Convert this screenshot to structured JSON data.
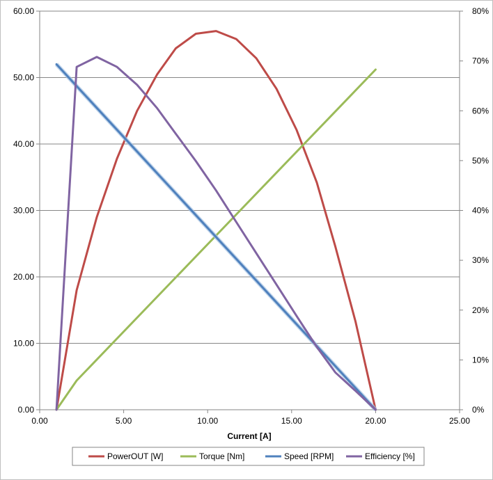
{
  "chart_data": {
    "type": "line",
    "xlabel": "Current [A]",
    "ylabel": "",
    "y2label": "",
    "xlim": [
      0,
      25
    ],
    "ylim": [
      0,
      60
    ],
    "y2lim": [
      0,
      80
    ],
    "x_ticks": [
      "0.00",
      "5.00",
      "10.00",
      "15.00",
      "20.00",
      "25.00"
    ],
    "y_ticks": [
      "0.00",
      "10.00",
      "20.00",
      "30.00",
      "40.00",
      "50.00",
      "60.00"
    ],
    "y2_ticks": [
      "0%",
      "10%",
      "20%",
      "30%",
      "40%",
      "50%",
      "60%",
      "70%",
      "80%"
    ],
    "grid": "horizontal",
    "legend_position": "bottom",
    "series": [
      {
        "name": "PowerOUT [W]",
        "color": "#be4b48",
        "axis": "left",
        "x": [
          1.0,
          2.2,
          3.4,
          4.6,
          5.8,
          7.0,
          8.1,
          9.3,
          10.5,
          11.7,
          12.9,
          14.1,
          15.3,
          16.5,
          17.6,
          18.8,
          20.0
        ],
        "y": [
          0,
          18.0,
          29.0,
          37.8,
          45.0,
          50.5,
          54.4,
          56.6,
          57.0,
          55.8,
          52.9,
          48.3,
          42.1,
          34.2,
          24.6,
          13.3,
          0
        ]
      },
      {
        "name": "Torque [Nm]",
        "color": "#9bbb59",
        "axis": "left",
        "x": [
          1.0,
          2.2,
          20.0
        ],
        "y": [
          0,
          4.4,
          51.2
        ]
      },
      {
        "name": "Speed [RPM]",
        "color": "#4f81bd",
        "axis": "left",
        "x": [
          1.0,
          20.0
        ],
        "y": [
          52.0,
          0
        ]
      },
      {
        "name": "Efficiency [%]",
        "color": "#8064a2",
        "axis": "right",
        "x": [
          1.0,
          2.2,
          3.4,
          4.6,
          5.8,
          7.0,
          8.1,
          9.3,
          10.5,
          11.7,
          12.9,
          14.1,
          15.3,
          16.5,
          17.6,
          18.8,
          20.0
        ],
        "y": [
          0,
          68.8,
          70.8,
          68.8,
          65.2,
          60.5,
          55.4,
          49.9,
          44.0,
          37.7,
          31.4,
          25.1,
          18.8,
          12.6,
          7.5,
          3.8,
          0
        ]
      }
    ]
  }
}
